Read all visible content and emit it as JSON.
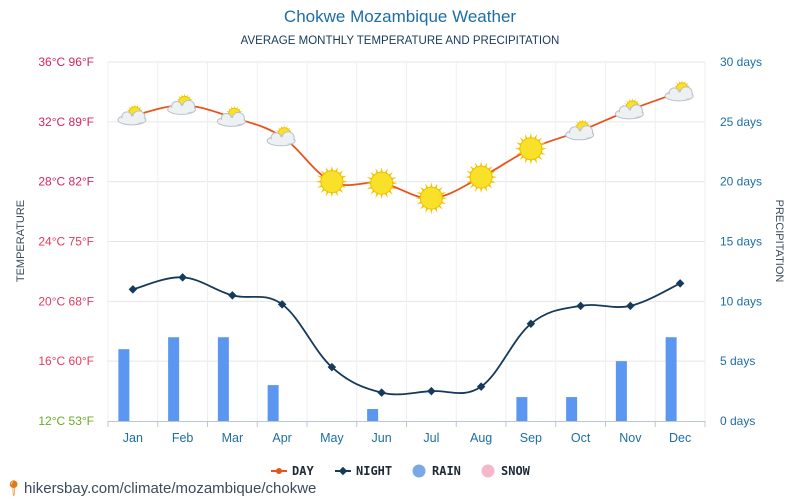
{
  "title": "Chokwe Mozambique Weather",
  "subtitle": "AVERAGE MONTHLY TEMPERATURE AND PRECIPITATION",
  "footer": "hikersbay.com/climate/mozambique/chokwe",
  "chart_data": {
    "type": "line",
    "categories": [
      "Jan",
      "Feb",
      "Mar",
      "Apr",
      "May",
      "Jun",
      "Jul",
      "Aug",
      "Sep",
      "Oct",
      "Nov",
      "Dec"
    ],
    "left_axis": {
      "label": "TEMPERATURE",
      "ticks": [
        "12°C 53°F",
        "16°C 60°F",
        "20°C 68°F",
        "24°C 75°F",
        "28°C 82°F",
        "32°C 89°F",
        "36°C 96°F"
      ],
      "tick_values": [
        12,
        16,
        20,
        24,
        28,
        32,
        36
      ],
      "ylim": [
        12,
        36
      ],
      "unit": "°C"
    },
    "right_axis": {
      "label": "PRECIPITATION",
      "ticks": [
        "0 days",
        "5 days",
        "10 days",
        "15 days",
        "20 days",
        "25 days",
        "30 days"
      ],
      "tick_values": [
        0,
        5,
        10,
        15,
        20,
        25,
        30
      ],
      "ylim": [
        0,
        30
      ],
      "unit": "days"
    },
    "series": [
      {
        "name": "DAY",
        "axis": "left",
        "color": "#e8541e",
        "values": [
          32.4,
          33.1,
          32.3,
          31.0,
          28.0,
          27.9,
          26.9,
          28.3,
          30.2,
          31.4,
          32.8,
          34.0
        ]
      },
      {
        "name": "NIGHT",
        "axis": "left",
        "color": "#163a5a",
        "values": [
          20.8,
          21.6,
          20.4,
          19.8,
          15.6,
          13.9,
          14.0,
          14.3,
          18.5,
          19.7,
          19.7,
          21.2
        ]
      },
      {
        "name": "RAIN",
        "axis": "right",
        "color": "#5b96f0",
        "values": [
          6,
          7,
          7,
          3,
          0,
          1,
          0,
          0,
          2,
          2,
          5,
          7
        ]
      },
      {
        "name": "SNOW",
        "axis": "right",
        "color": "#f5b8c8",
        "values": [
          0,
          0,
          0,
          0,
          0,
          0,
          0,
          0,
          0,
          0,
          0,
          0
        ]
      }
    ],
    "day_icons": [
      "partly-cloudy-icon",
      "partly-cloudy-icon",
      "partly-cloudy-icon",
      "partly-cloudy-icon",
      "sun-icon",
      "sun-icon",
      "sun-icon",
      "sun-icon",
      "sun-icon",
      "partly-cloudy-icon",
      "partly-cloudy-icon",
      "partly-cloudy-icon"
    ],
    "grid": true,
    "legend_position": "bottom-center",
    "colors": {
      "left_tick_hot": "#d4245c",
      "left_tick_mild": "#e23a5e",
      "left_tick_cool": "#6aaa24",
      "right_tick": "#1c6ea4",
      "axis_label": "#3a4a5c"
    }
  }
}
